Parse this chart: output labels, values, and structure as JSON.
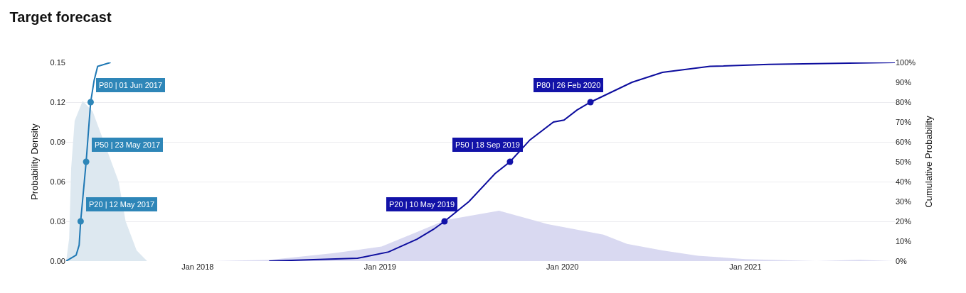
{
  "chart_data": {
    "type": "line",
    "title": "Target forecast",
    "ylabel": "Probability Density",
    "y2label": "Cumulative Probability",
    "xlim": [
      "2017-04-13",
      "2021-10-27"
    ],
    "xticks": [
      {
        "value": "2018-01-01",
        "label": "Jan 2018"
      },
      {
        "value": "2019-01-01",
        "label": "Jan 2019"
      },
      {
        "value": "2020-01-01",
        "label": "Jan 2020"
      },
      {
        "value": "2021-01-01",
        "label": "Jan 2021"
      }
    ],
    "ylim": [
      0,
      0.15
    ],
    "yticks": [
      {
        "value": 0,
        "label": "0.00"
      },
      0.03,
      0.06,
      0.09,
      0.12,
      0.15
    ],
    "y2lim": [
      0,
      100
    ],
    "y2ticks": [
      {
        "value": 0,
        "label": "0%"
      },
      {
        "value": 10,
        "label": "10%"
      },
      {
        "value": 20,
        "label": "20%"
      },
      {
        "value": 30,
        "label": "30%"
      },
      {
        "value": 40,
        "label": "40%"
      },
      {
        "value": 50,
        "label": "50%"
      },
      {
        "value": 60,
        "label": "60%"
      },
      {
        "value": 70,
        "label": "70%"
      },
      {
        "value": 80,
        "label": "80%"
      },
      {
        "value": 90,
        "label": "90%"
      },
      {
        "value": 100,
        "label": "100%"
      }
    ],
    "grid": "y",
    "series": [
      {
        "type": "area",
        "color": "#dde8f0",
        "x": [
          "2017-04-13",
          "2017-04-19",
          "2017-04-23",
          "2017-04-30",
          "2017-05-16",
          "2017-06-05",
          "2017-07-27",
          "2017-08-10",
          "2017-09-01",
          "2017-09-22"
        ],
        "values": [
          0,
          0.017,
          0.07,
          0.106,
          0.121,
          0.113,
          0.06,
          0.03,
          0.008,
          0
        ]
      },
      {
        "type": "area",
        "color": "#d9d9f1",
        "x": [
          "2018-02-01",
          "2018-05-26",
          "2018-10-01",
          "2019-01-04",
          "2019-03-16",
          "2019-05-12",
          "2019-08-27",
          "2019-12-01",
          "2020-03-23",
          "2020-05-09",
          "2020-07-19",
          "2020-09-28",
          "2021-01-01",
          "2021-05-23",
          "2021-08-17",
          "2021-10-24"
        ],
        "values": [
          0,
          0.001,
          0.006,
          0.011,
          0.022,
          0.031,
          0.038,
          0.028,
          0.02,
          0.013,
          0.008,
          0.004,
          0.0015,
          0,
          0.001,
          0
        ]
      },
      {
        "axis": "y2",
        "color": "#1f78b4",
        "x": [
          "2017-04-13",
          "2017-05-03",
          "2017-05-09",
          "2017-05-12",
          "2017-05-23",
          "2017-06-01",
          "2017-06-08",
          "2017-06-15",
          "2017-07-11"
        ],
        "values": [
          0,
          3,
          8,
          20,
          50,
          80,
          91,
          98,
          100
        ]
      },
      {
        "axis": "y2",
        "color": "#0d0d9e",
        "x": [
          "2018-05-24",
          "2018-11-17",
          "2019-01-18",
          "2019-03-16",
          "2019-04-18",
          "2019-05-10",
          "2019-06-28",
          "2019-08-19",
          "2019-09-18",
          "2019-10-28",
          "2019-12-14",
          "2020-01-04",
          "2020-01-30",
          "2020-02-26",
          "2020-05-19",
          "2020-07-19",
          "2020-10-22",
          "2021-02-17",
          "2021-10-27"
        ],
        "values": [
          0,
          1.4,
          4.6,
          11,
          16,
          20,
          30,
          44,
          50,
          61,
          70,
          71,
          76,
          80,
          90,
          95,
          98,
          99,
          100
        ]
      },
      {
        "type": "scatter",
        "axis": "y2",
        "marker": "circle",
        "color": "#2e86b8",
        "x": [
          "2017-05-12",
          "2017-05-23",
          "2017-06-01"
        ],
        "values": [
          20,
          50,
          80
        ],
        "value_labels": [
          "P20 | 12 May 2017",
          "P50 | 23 May 2017",
          "P80 | 01 Jun 2017"
        ]
      },
      {
        "type": "scatter",
        "axis": "y2",
        "marker": "circle",
        "color": "#1212a8",
        "x": [
          "2019-05-10",
          "2019-09-18",
          "2020-02-26"
        ],
        "values": [
          20,
          50,
          80
        ],
        "value_labels": [
          "P20 | 10 May 2019",
          "P50 | 18 Sep 2019",
          "P80 | 26 Feb 2020"
        ]
      }
    ]
  }
}
